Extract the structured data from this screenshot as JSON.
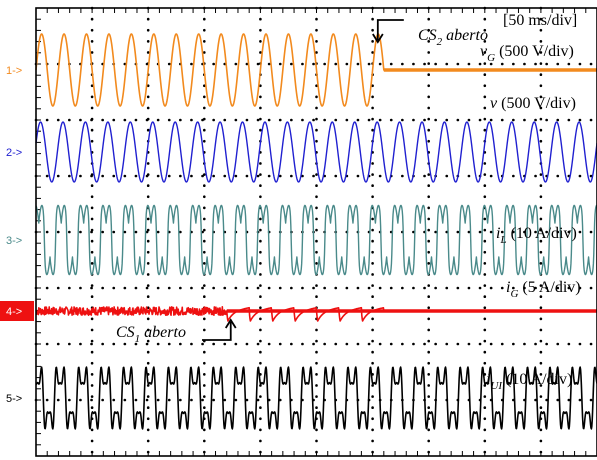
{
  "chart_data": {
    "type": "line",
    "title": "",
    "xlabel": "",
    "ylabel": "",
    "timebase": "[50 ms/div]",
    "grid": true,
    "x_divisions": 10,
    "y_divisions": 8,
    "series": [
      {
        "marker": "1->",
        "color": "#f28a1e",
        "label": {
          "sym": "v",
          "sub": "G",
          "scale": " (500 V/div)"
        },
        "waveform": "sine",
        "cycles_before_event": 15.5,
        "event_time_div": 6.2,
        "state_after_event": "zero"
      },
      {
        "marker": "2->",
        "color": "#2020d0",
        "label": {
          "sym": "v",
          "sub": "",
          "scale": " (500 V/div)"
        },
        "waveform": "sine",
        "cycles": 25,
        "state_after_event": "continues"
      },
      {
        "marker": "3->",
        "color": "#4a8a8a",
        "label": {
          "sym": "i",
          "sub": "L",
          "scale": " (10 A/div)"
        },
        "waveform": "distorted-periodic",
        "cycles": 25
      },
      {
        "marker": "4->",
        "color": "#ee1111",
        "label": {
          "sym": "i",
          "sub": "G",
          "scale": " (5 A/div)"
        },
        "waveform": "noisy-then-transient",
        "event_time_div": 3.4,
        "second_event_time_div": 6.2,
        "state_after_event": "zero"
      },
      {
        "marker": "5->",
        "color": "#000000",
        "label": {
          "sym": "i",
          "sub": "UI",
          "scale": " (10 A/div)"
        },
        "waveform": "distorted-periodic",
        "cycles": 25
      }
    ],
    "annotations": [
      {
        "name": "CS",
        "sub": "2",
        "text": " aberto",
        "event_time_div": 6.2
      },
      {
        "name": "CS",
        "sub": "1",
        "text": " aberto",
        "event_time_div": 3.4
      }
    ]
  }
}
